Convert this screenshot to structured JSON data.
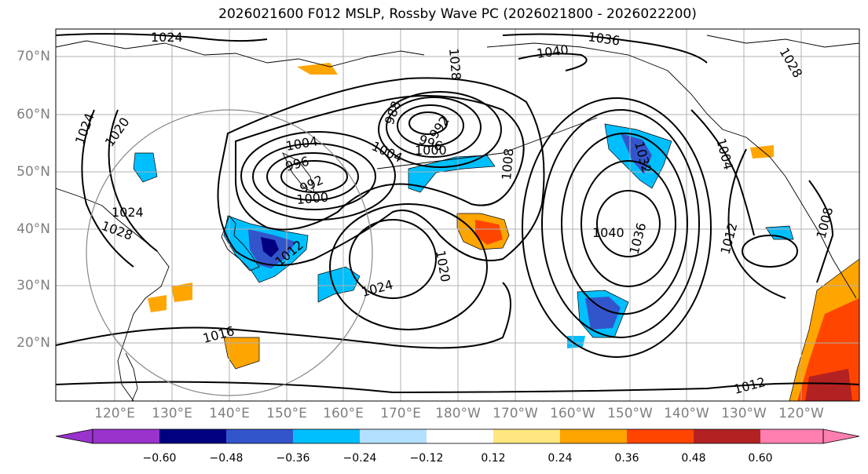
{
  "title": "2026021600 F012 MSLP, Rossby Wave PC (2026021800 - 2026022200)",
  "latitude_labels": [
    "70°N",
    "60°N",
    "50°N",
    "40°N",
    "30°N",
    "20°N"
  ],
  "longitude_labels": [
    "120°E",
    "130°E",
    "140°E",
    "150°E",
    "160°E",
    "170°E",
    "180°W",
    "170°W",
    "160°W",
    "150°W",
    "140°W",
    "130°W",
    "120°W"
  ],
  "isobar_labels": [
    {
      "id": "lbl-1024-nw",
      "text": "1024"
    },
    {
      "id": "lbl-1036-n",
      "text": "1036"
    },
    {
      "id": "lbl-1040-n",
      "text": "1040"
    },
    {
      "id": "lbl-1028-n",
      "text": "1028"
    },
    {
      "id": "lbl-1028-ne",
      "text": "1028"
    },
    {
      "id": "lbl-1024-w",
      "text": "1024"
    },
    {
      "id": "lbl-1020-w",
      "text": "1020"
    },
    {
      "id": "lbl-988",
      "text": "988"
    },
    {
      "id": "lbl-992",
      "text": "992"
    },
    {
      "id": "lbl-996-a",
      "text": "996"
    },
    {
      "id": "lbl-1000-a",
      "text": "1000"
    },
    {
      "id": "lbl-1004-a",
      "text": "1004"
    },
    {
      "id": "lbl-1008-c",
      "text": "1008"
    },
    {
      "id": "lbl-1004-b",
      "text": "1004"
    },
    {
      "id": "lbl-996-b",
      "text": "996"
    },
    {
      "id": "lbl-992-b",
      "text": "992"
    },
    {
      "id": "lbl-1000-b",
      "text": "1000"
    },
    {
      "id": "lbl-1024-asia",
      "text": "1024"
    },
    {
      "id": "lbl-1028-asia",
      "text": "1028"
    },
    {
      "id": "lbl-1012-jp",
      "text": "1012"
    },
    {
      "id": "lbl-1024-c",
      "text": "1024"
    },
    {
      "id": "lbl-1020-c",
      "text": "1020"
    },
    {
      "id": "lbl-1016-sw",
      "text": "1016"
    },
    {
      "id": "lbl-1032-e",
      "text": "1032"
    },
    {
      "id": "lbl-1040-e",
      "text": "1040"
    },
    {
      "id": "lbl-1036-e",
      "text": "1036"
    },
    {
      "id": "lbl-1004-e",
      "text": "1004"
    },
    {
      "id": "lbl-1012-e",
      "text": "1012"
    },
    {
      "id": "lbl-1008-e",
      "text": "1008"
    },
    {
      "id": "lbl-1012-se",
      "text": "1012"
    }
  ],
  "colorbar": {
    "tick_labels": [
      "−0.60",
      "−0.48",
      "−0.36",
      "−0.24",
      "−0.12",
      "0.12",
      "0.24",
      "0.36",
      "0.48",
      "0.60"
    ],
    "colors": [
      "#9933cc",
      "#000080",
      "#3355cc",
      "#00bfff",
      "#b3e0ff",
      "#ffffff",
      "#ffe680",
      "#ffa500",
      "#ff4500",
      "#b22222",
      "#ff80b0"
    ]
  },
  "legend_colors": {
    "isobar": "#000000",
    "coast": "#000000",
    "grid": "#b0b0b0",
    "circle": "#888888"
  }
}
